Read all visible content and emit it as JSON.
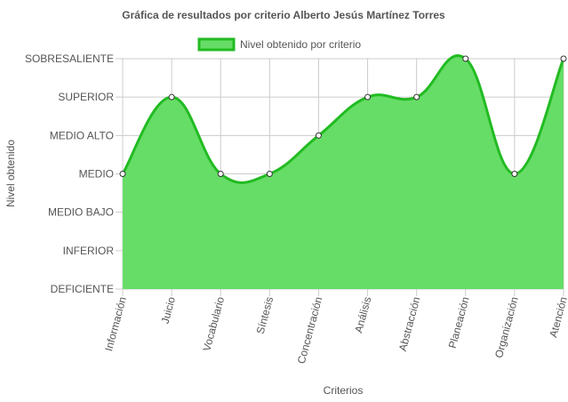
{
  "chart_data": {
    "type": "line",
    "area_fill": true,
    "title": "Gráfica de resultados por criterio Alberto Jesús Martínez Torres",
    "xlabel": "Criterios",
    "ylabel": "Nivel obtenido",
    "y_levels": [
      "DEFICIENTE",
      "INFERIOR",
      "MEDIO BAJO",
      "MEDIO",
      "MEDIO ALTO",
      "SUPERIOR",
      "SOBRESALIENTE"
    ],
    "categories": [
      "Información",
      "Juicio",
      "Vocabulario",
      "Síntesis",
      "Concentración",
      "Análisis",
      "Abstracción",
      "Planeación",
      "Organización",
      "Atención"
    ],
    "series": [
      {
        "name": "Nivel obtenido por criterio",
        "values": [
          "MEDIO",
          "SUPERIOR",
          "MEDIO",
          "MEDIO",
          "MEDIO ALTO",
          "SUPERIOR",
          "SUPERIOR",
          "SOBRESALIENTE",
          "MEDIO",
          "SOBRESALIENTE"
        ],
        "fill_color": "#66dd66",
        "line_color": "#22bb22"
      }
    ],
    "legend": "top",
    "grid": true
  }
}
